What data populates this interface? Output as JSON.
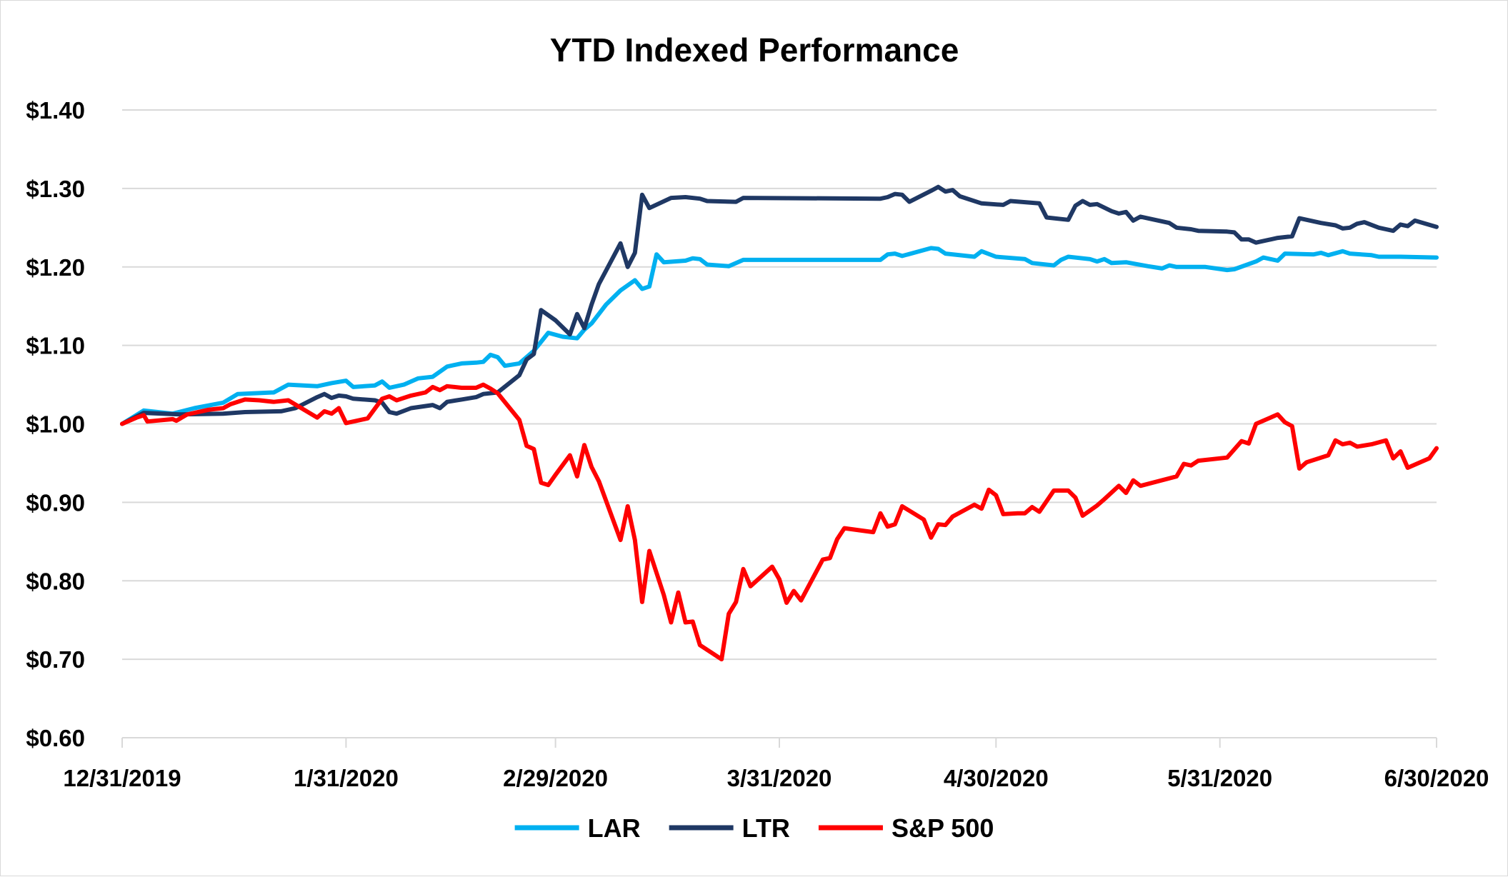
{
  "chart_data": {
    "type": "line",
    "title": "YTD Indexed Performance",
    "xlabel": "",
    "ylabel": "",
    "ylim": [
      0.6,
      1.4
    ],
    "y_ticks": [
      "$0.60",
      "$0.70",
      "$0.80",
      "$0.90",
      "$1.00",
      "$1.10",
      "$1.20",
      "$1.30",
      "$1.40"
    ],
    "y_tick_values": [
      0.6,
      0.7,
      0.8,
      0.9,
      1.0,
      1.1,
      1.2,
      1.3,
      1.4
    ],
    "x_range_days": [
      0,
      182
    ],
    "x_ticks": [
      {
        "label": "12/31/2019",
        "day": 0
      },
      {
        "label": "1/31/2020",
        "day": 31
      },
      {
        "label": "2/29/2020",
        "day": 60
      },
      {
        "label": "3/31/2020",
        "day": 91
      },
      {
        "label": "4/30/2020",
        "day": 121
      },
      {
        "label": "5/31/2020",
        "day": 152
      },
      {
        "label": "6/30/2020",
        "day": 182
      }
    ],
    "grid": true,
    "legend_position": "bottom",
    "series": [
      {
        "name": "LAR",
        "color": "#00B0F0",
        "points": [
          [
            0,
            1.0
          ],
          [
            3,
            1.017
          ],
          [
            7,
            1.013
          ],
          [
            10,
            1.02
          ],
          [
            14,
            1.027
          ],
          [
            16,
            1.038
          ],
          [
            21,
            1.04
          ],
          [
            23,
            1.05
          ],
          [
            27,
            1.048
          ],
          [
            29,
            1.052
          ],
          [
            31,
            1.055
          ],
          [
            32,
            1.047
          ],
          [
            35,
            1.049
          ],
          [
            36,
            1.054
          ],
          [
            37,
            1.046
          ],
          [
            39,
            1.05
          ],
          [
            41,
            1.058
          ],
          [
            43,
            1.06
          ],
          [
            45,
            1.073
          ],
          [
            47,
            1.077
          ],
          [
            49,
            1.078
          ],
          [
            50,
            1.079
          ],
          [
            51,
            1.088
          ],
          [
            52,
            1.085
          ],
          [
            53,
            1.074
          ],
          [
            55,
            1.077
          ],
          [
            57,
            1.093
          ],
          [
            59,
            1.116
          ],
          [
            61,
            1.111
          ],
          [
            63,
            1.109
          ],
          [
            64,
            1.12
          ],
          [
            65,
            1.128
          ],
          [
            67,
            1.152
          ],
          [
            69,
            1.17
          ],
          [
            71,
            1.183
          ],
          [
            72,
            1.172
          ],
          [
            73,
            1.175
          ],
          [
            74,
            1.216
          ],
          [
            75,
            1.206
          ],
          [
            78,
            1.208
          ],
          [
            79,
            1.211
          ],
          [
            80,
            1.21
          ],
          [
            81,
            1.203
          ],
          [
            84,
            1.201
          ],
          [
            86,
            1.209
          ],
          [
            95,
            1.209
          ],
          [
            105,
            1.209
          ],
          [
            106,
            1.216
          ],
          [
            107,
            1.217
          ],
          [
            108,
            1.214
          ],
          [
            112,
            1.224
          ],
          [
            113,
            1.223
          ],
          [
            114,
            1.217
          ],
          [
            118,
            1.213
          ],
          [
            119,
            1.22
          ],
          [
            121,
            1.213
          ],
          [
            125,
            1.21
          ],
          [
            126,
            1.205
          ],
          [
            129,
            1.202
          ],
          [
            130,
            1.209
          ],
          [
            131,
            1.213
          ],
          [
            134,
            1.21
          ],
          [
            135,
            1.207
          ],
          [
            136,
            1.21
          ],
          [
            137,
            1.205
          ],
          [
            139,
            1.206
          ],
          [
            142,
            1.201
          ],
          [
            144,
            1.198
          ],
          [
            145,
            1.202
          ],
          [
            146,
            1.2
          ],
          [
            150,
            1.2
          ],
          [
            153,
            1.196
          ],
          [
            154,
            1.197
          ],
          [
            157,
            1.207
          ],
          [
            158,
            1.212
          ],
          [
            160,
            1.208
          ],
          [
            161,
            1.217
          ],
          [
            165,
            1.216
          ],
          [
            166,
            1.218
          ],
          [
            167,
            1.215
          ],
          [
            169,
            1.22
          ],
          [
            170,
            1.217
          ],
          [
            173,
            1.215
          ],
          [
            174,
            1.213
          ],
          [
            177,
            1.213
          ],
          [
            182,
            1.212
          ]
        ]
      },
      {
        "name": "LTR",
        "color": "#1F3864",
        "points": [
          [
            0,
            1.0
          ],
          [
            3,
            1.014
          ],
          [
            8,
            1.012
          ],
          [
            14,
            1.013
          ],
          [
            17,
            1.015
          ],
          [
            22,
            1.016
          ],
          [
            24,
            1.02
          ],
          [
            27,
            1.034
          ],
          [
            28,
            1.038
          ],
          [
            29,
            1.033
          ],
          [
            30,
            1.036
          ],
          [
            31,
            1.035
          ],
          [
            32,
            1.032
          ],
          [
            35,
            1.03
          ],
          [
            36,
            1.027
          ],
          [
            37,
            1.015
          ],
          [
            38,
            1.013
          ],
          [
            40,
            1.02
          ],
          [
            43,
            1.024
          ],
          [
            44,
            1.02
          ],
          [
            45,
            1.028
          ],
          [
            47,
            1.031
          ],
          [
            49,
            1.034
          ],
          [
            50,
            1.038
          ],
          [
            52,
            1.04
          ],
          [
            55,
            1.062
          ],
          [
            56,
            1.082
          ],
          [
            57,
            1.089
          ],
          [
            58,
            1.145
          ],
          [
            60,
            1.132
          ],
          [
            62,
            1.114
          ],
          [
            63,
            1.14
          ],
          [
            64,
            1.122
          ],
          [
            65,
            1.152
          ],
          [
            66,
            1.178
          ],
          [
            69,
            1.23
          ],
          [
            70,
            1.2
          ],
          [
            71,
            1.218
          ],
          [
            72,
            1.292
          ],
          [
            73,
            1.275
          ],
          [
            76,
            1.288
          ],
          [
            78,
            1.289
          ],
          [
            80,
            1.287
          ],
          [
            81,
            1.284
          ],
          [
            85,
            1.283
          ],
          [
            86,
            1.288
          ],
          [
            105,
            1.287
          ],
          [
            106,
            1.289
          ],
          [
            107,
            1.293
          ],
          [
            108,
            1.292
          ],
          [
            109,
            1.283
          ],
          [
            112,
            1.297
          ],
          [
            113,
            1.302
          ],
          [
            114,
            1.296
          ],
          [
            115,
            1.298
          ],
          [
            116,
            1.29
          ],
          [
            119,
            1.281
          ],
          [
            122,
            1.279
          ],
          [
            123,
            1.284
          ],
          [
            127,
            1.281
          ],
          [
            128,
            1.263
          ],
          [
            131,
            1.26
          ],
          [
            132,
            1.278
          ],
          [
            133,
            1.284
          ],
          [
            134,
            1.279
          ],
          [
            135,
            1.28
          ],
          [
            137,
            1.271
          ],
          [
            138,
            1.268
          ],
          [
            139,
            1.27
          ],
          [
            140,
            1.259
          ],
          [
            141,
            1.264
          ],
          [
            145,
            1.256
          ],
          [
            146,
            1.25
          ],
          [
            148,
            1.248
          ],
          [
            149,
            1.246
          ],
          [
            153,
            1.245
          ],
          [
            154,
            1.244
          ],
          [
            155,
            1.235
          ],
          [
            156,
            1.235
          ],
          [
            157,
            1.231
          ],
          [
            160,
            1.237
          ],
          [
            162,
            1.239
          ],
          [
            163,
            1.262
          ],
          [
            166,
            1.256
          ],
          [
            168,
            1.253
          ],
          [
            169,
            1.249
          ],
          [
            170,
            1.25
          ],
          [
            171,
            1.255
          ],
          [
            172,
            1.257
          ],
          [
            174,
            1.25
          ],
          [
            175,
            1.248
          ],
          [
            176,
            1.246
          ],
          [
            177,
            1.254
          ],
          [
            178,
            1.252
          ],
          [
            179,
            1.259
          ],
          [
            182,
            1.251
          ]
        ]
      },
      {
        "name": "S&P 500",
        "color": "#FF0000",
        "points": [
          [
            0,
            1.0
          ],
          [
            2,
            1.008
          ],
          [
            3,
            1.011
          ],
          [
            3.5,
            1.003
          ],
          [
            7,
            1.006
          ],
          [
            7.5,
            1.004
          ],
          [
            9,
            1.012
          ],
          [
            12,
            1.018
          ],
          [
            14,
            1.02
          ],
          [
            15,
            1.025
          ],
          [
            17,
            1.031
          ],
          [
            19,
            1.03
          ],
          [
            21,
            1.028
          ],
          [
            23,
            1.03
          ],
          [
            27,
            1.008
          ],
          [
            28,
            1.016
          ],
          [
            29,
            1.013
          ],
          [
            30,
            1.02
          ],
          [
            31,
            1.001
          ],
          [
            34,
            1.007
          ],
          [
            36,
            1.032
          ],
          [
            37,
            1.035
          ],
          [
            38,
            1.03
          ],
          [
            40,
            1.036
          ],
          [
            42,
            1.04
          ],
          [
            43,
            1.047
          ],
          [
            44,
            1.043
          ],
          [
            45,
            1.048
          ],
          [
            47,
            1.046
          ],
          [
            49,
            1.046
          ],
          [
            50,
            1.05
          ],
          [
            51,
            1.045
          ],
          [
            52,
            1.039
          ],
          [
            55,
            1.005
          ],
          [
            56,
            0.972
          ],
          [
            57,
            0.968
          ],
          [
            58,
            0.925
          ],
          [
            59,
            0.922
          ],
          [
            60,
            0.935
          ],
          [
            62,
            0.96
          ],
          [
            63,
            0.933
          ],
          [
            64,
            0.973
          ],
          [
            65,
            0.945
          ],
          [
            66,
            0.927
          ],
          [
            69,
            0.852
          ],
          [
            70,
            0.895
          ],
          [
            71,
            0.852
          ],
          [
            72,
            0.773
          ],
          [
            73,
            0.838
          ],
          [
            75,
            0.782
          ],
          [
            76,
            0.747
          ],
          [
            77,
            0.785
          ],
          [
            78,
            0.747
          ],
          [
            79,
            0.748
          ],
          [
            80,
            0.718
          ],
          [
            83,
            0.7
          ],
          [
            84,
            0.758
          ],
          [
            85,
            0.773
          ],
          [
            86,
            0.815
          ],
          [
            87,
            0.793
          ],
          [
            90,
            0.818
          ],
          [
            91,
            0.802
          ],
          [
            92,
            0.772
          ],
          [
            93,
            0.787
          ],
          [
            94,
            0.775
          ],
          [
            97,
            0.827
          ],
          [
            98,
            0.829
          ],
          [
            99,
            0.853
          ],
          [
            100,
            0.867
          ],
          [
            104,
            0.862
          ],
          [
            105,
            0.886
          ],
          [
            106,
            0.869
          ],
          [
            107,
            0.872
          ],
          [
            108,
            0.895
          ],
          [
            111,
            0.878
          ],
          [
            112,
            0.855
          ],
          [
            113,
            0.872
          ],
          [
            114,
            0.871
          ],
          [
            115,
            0.882
          ],
          [
            118,
            0.897
          ],
          [
            119,
            0.892
          ],
          [
            120,
            0.916
          ],
          [
            121,
            0.909
          ],
          [
            122,
            0.885
          ],
          [
            124,
            0.886
          ],
          [
            125,
            0.886
          ],
          [
            126,
            0.894
          ],
          [
            127,
            0.888
          ],
          [
            129,
            0.915
          ],
          [
            131,
            0.915
          ],
          [
            132,
            0.906
          ],
          [
            133,
            0.883
          ],
          [
            135,
            0.896
          ],
          [
            136,
            0.904
          ],
          [
            138,
            0.921
          ],
          [
            139,
            0.912
          ],
          [
            140,
            0.928
          ],
          [
            141,
            0.921
          ],
          [
            146,
            0.933
          ],
          [
            147,
            0.949
          ],
          [
            148,
            0.947
          ],
          [
            149,
            0.953
          ],
          [
            153,
            0.957
          ],
          [
            155,
            0.978
          ],
          [
            156,
            0.975
          ],
          [
            157,
            1.0
          ],
          [
            160,
            1.012
          ],
          [
            161,
            1.002
          ],
          [
            162,
            0.997
          ],
          [
            163,
            0.943
          ],
          [
            164,
            0.951
          ],
          [
            167,
            0.96
          ],
          [
            168,
            0.979
          ],
          [
            169,
            0.974
          ],
          [
            170,
            0.976
          ],
          [
            171,
            0.971
          ],
          [
            173,
            0.974
          ],
          [
            175,
            0.979
          ],
          [
            176,
            0.956
          ],
          [
            177,
            0.965
          ],
          [
            178,
            0.944
          ],
          [
            181,
            0.956
          ],
          [
            182,
            0.969
          ]
        ]
      }
    ]
  }
}
